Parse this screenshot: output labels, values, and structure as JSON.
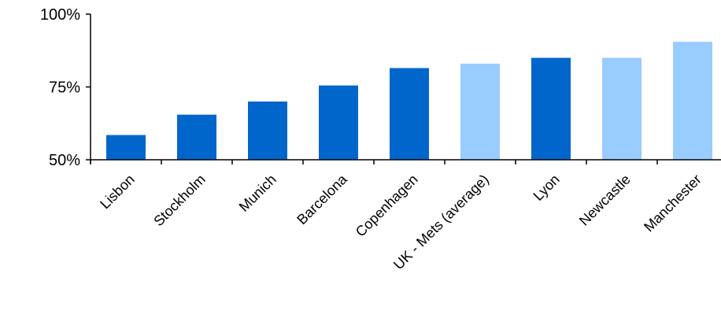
{
  "chart_data": {
    "type": "bar",
    "title": "",
    "xlabel": "",
    "ylabel": "",
    "categories": [
      "Lisbon",
      "Stockholm",
      "Munich",
      "Barcelona",
      "Copenhagen",
      "UK - Mets (average)",
      "Lyon",
      "Newcastle",
      "Manchester"
    ],
    "values": [
      58.5,
      65.5,
      70,
      75.5,
      81.5,
      83,
      85,
      85,
      90.5
    ],
    "value_unit": "percent",
    "highlighted_categories": [
      "UK - Mets (average)",
      "Newcastle",
      "Manchester"
    ],
    "ylim": [
      50,
      100
    ],
    "yticks": [
      50,
      75,
      100
    ],
    "ytick_labels": [
      "50%",
      "75%",
      "100%"
    ],
    "grid": false,
    "legend": "none",
    "colors": {
      "default": "#0066CC",
      "highlight": "#99CCFF",
      "axis": "#000000"
    }
  }
}
